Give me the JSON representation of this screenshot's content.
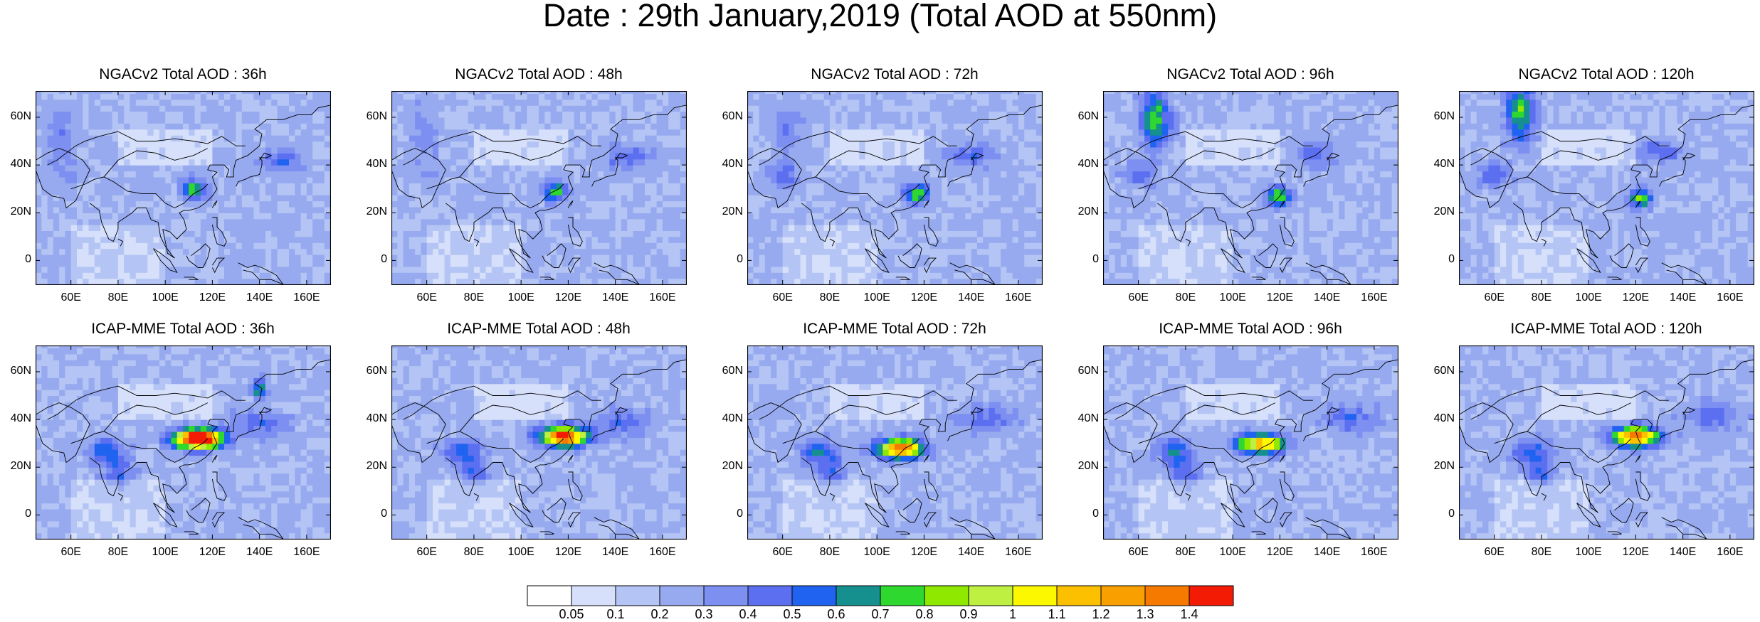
{
  "title": "Date : 29th January,2019 (Total AOD at 550nm)",
  "rows": [
    {
      "model": "NGACv2",
      "panels": [
        {
          "label": "NGACv2 Total AOD : 36h"
        },
        {
          "label": "NGACv2 Total AOD : 48h"
        },
        {
          "label": "NGACv2 Total AOD : 72h"
        },
        {
          "label": "NGACv2 Total AOD : 96h"
        },
        {
          "label": "NGACv2 Total AOD : 120h"
        }
      ]
    },
    {
      "model": "ICAP-MME",
      "panels": [
        {
          "label": "ICAP-MME Total AOD : 36h"
        },
        {
          "label": "ICAP-MME Total AOD : 48h"
        },
        {
          "label": "ICAP-MME Total AOD : 72h"
        },
        {
          "label": "ICAP-MME Total AOD : 96h"
        },
        {
          "label": "ICAP-MME Total AOD : 120h"
        }
      ]
    }
  ],
  "axes": {
    "lon_ticks": [
      "60E",
      "80E",
      "100E",
      "120E",
      "140E",
      "160E"
    ],
    "lat_ticks": [
      "60N",
      "40N",
      "20N",
      "0"
    ]
  },
  "colorbar": {
    "labels": [
      "0.05",
      "0.1",
      "0.2",
      "0.3",
      "0.4",
      "0.5",
      "0.6",
      "0.7",
      "0.8",
      "0.9",
      "1",
      "1.1",
      "1.2",
      "1.3",
      "1.4"
    ],
    "colors": [
      "#ffffff",
      "#d6e0fb",
      "#b4c4f4",
      "#97aaef",
      "#7d8ff0",
      "#5b6ff0",
      "#1f63f0",
      "#16908f",
      "#2ed82e",
      "#8ee800",
      "#bdf040",
      "#fcf800",
      "#fcc000",
      "#f9a000",
      "#f77a00",
      "#f41b05"
    ]
  }
}
